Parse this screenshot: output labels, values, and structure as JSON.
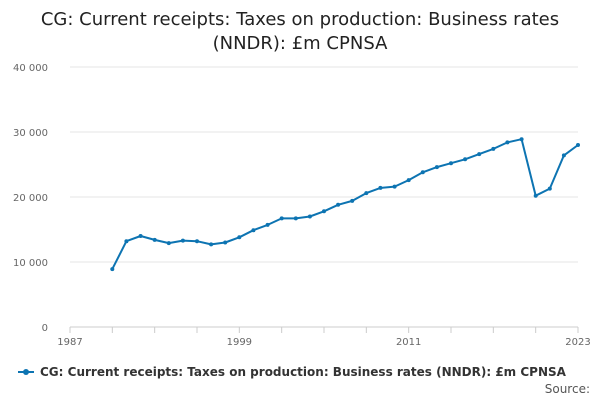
{
  "chart_data": {
    "type": "line",
    "title": "CG: Current receipts: Taxes on production: Business rates (NNDR): £m CPNSA",
    "xlabel": "",
    "ylabel": "",
    "x_ticks": [
      "1987",
      "1999",
      "2011",
      "2023"
    ],
    "y_ticks": [
      "0",
      "10 000",
      "20 000",
      "30 000",
      "40 000"
    ],
    "xlim": [
      1987,
      2023
    ],
    "ylim": [
      0,
      40000
    ],
    "grid": true,
    "legend_position": "bottom-left",
    "x": [
      1990,
      1991,
      1992,
      1993,
      1994,
      1995,
      1996,
      1997,
      1998,
      1999,
      2000,
      2001,
      2002,
      2003,
      2004,
      2005,
      2006,
      2007,
      2008,
      2009,
      2010,
      2011,
      2012,
      2013,
      2014,
      2015,
      2016,
      2017,
      2018,
      2019,
      2020,
      2021,
      2022,
      2023
    ],
    "series": [
      {
        "name": "CG: Current receipts: Taxes on production: Business rates (NNDR): £m CPNSA",
        "color": "#0d74b2",
        "values": [
          8900,
          13200,
          14000,
          13400,
          12900,
          13300,
          13200,
          12700,
          13000,
          13800,
          14900,
          15700,
          16700,
          16700,
          17000,
          17800,
          18800,
          19400,
          20600,
          21400,
          21600,
          22600,
          23800,
          24600,
          25200,
          25800,
          26600,
          27400,
          28400,
          28900,
          20200,
          21300,
          26400,
          28000
        ]
      }
    ]
  },
  "legend": {
    "label": "CG: Current receipts: Taxes on production: Business rates (NNDR): £m CPNSA"
  },
  "source_label": "Source:"
}
